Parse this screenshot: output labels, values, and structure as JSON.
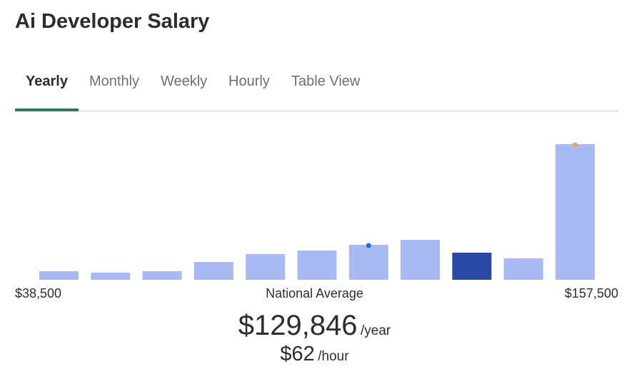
{
  "header": {
    "title": "Ai Developer Salary"
  },
  "tabs": [
    {
      "label": "Yearly",
      "active": true
    },
    {
      "label": "Monthly",
      "active": false
    },
    {
      "label": "Weekly",
      "active": false
    },
    {
      "label": "Hourly",
      "active": false
    },
    {
      "label": "Table View",
      "active": false
    }
  ],
  "chart_data": {
    "type": "bar",
    "values": [
      1.2,
      1.0,
      1.2,
      2.5,
      3.6,
      4.1,
      4.9,
      5.6,
      3.8,
      3.0,
      19.0
    ],
    "highlight_index": 8,
    "marker_blue_index": 6,
    "marker_orange_index": 10,
    "min_label": "$38,500",
    "center_label": "National Average",
    "max_label": "$157,500",
    "colors": {
      "bar": "#a8baf3",
      "highlight": "#2a48a6",
      "marker_blue": "#1a73e8",
      "marker_orange": "#f5a33a"
    }
  },
  "average": {
    "yearly_value": "$129,846",
    "yearly_unit": "/year",
    "hourly_value": "$62",
    "hourly_unit": "/hour"
  }
}
